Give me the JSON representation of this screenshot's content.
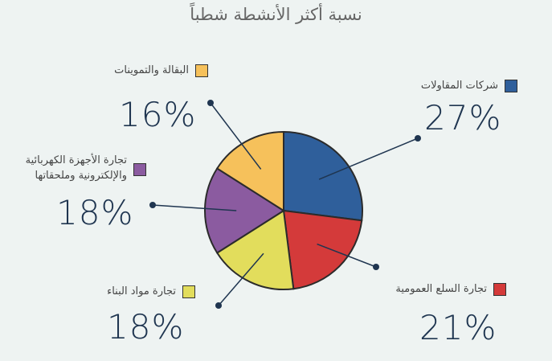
{
  "chart_data": {
    "type": "pie",
    "title": "نسبة أكثر الأنشطة شطباً",
    "categories": [
      "شركات المقاولات",
      "تجارة السلع العمومية",
      "تجارة مواد البناء",
      "تجارة الأجهزة الكهربائية والإلكترونية وملحقاتها",
      "البقالة والتموينات"
    ],
    "values": [
      27,
      21,
      18,
      18,
      16
    ],
    "value_labels": [
      "27%",
      "21%",
      "18%",
      "18%",
      "16%"
    ],
    "colors": [
      "#2f5f9b",
      "#d43a3a",
      "#e2dd5c",
      "#8b5ba0",
      "#f6c15b"
    ]
  }
}
